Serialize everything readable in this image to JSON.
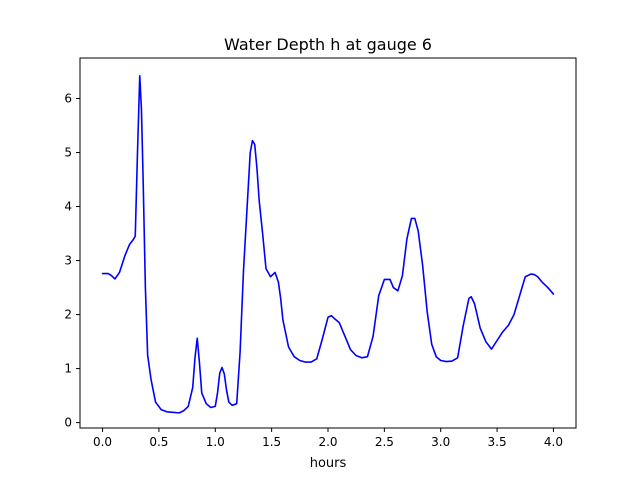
{
  "chart_data": {
    "type": "line",
    "title": "Water Depth h at gauge 6",
    "xlabel": "hours",
    "ylabel": "",
    "xlim": [
      -0.2,
      4.2
    ],
    "ylim": [
      -0.1,
      6.75
    ],
    "xticks": [
      0.0,
      0.5,
      1.0,
      1.5,
      2.0,
      2.5,
      3.0,
      3.5,
      4.0
    ],
    "xtick_labels": [
      "0.0",
      "0.5",
      "1.0",
      "1.5",
      "2.0",
      "2.5",
      "3.0",
      "3.5",
      "4.0"
    ],
    "yticks": [
      0,
      1,
      2,
      3,
      4,
      5,
      6
    ],
    "ytick_labels": [
      "0",
      "1",
      "2",
      "3",
      "4",
      "5",
      "6"
    ],
    "grid": false,
    "series": [
      {
        "color": "#0000ff",
        "x": [
          0.0,
          0.05,
          0.08,
          0.11,
          0.15,
          0.2,
          0.24,
          0.27,
          0.29,
          0.31,
          0.33,
          0.345,
          0.36,
          0.38,
          0.4,
          0.43,
          0.47,
          0.52,
          0.57,
          0.62,
          0.68,
          0.72,
          0.76,
          0.8,
          0.82,
          0.84,
          0.86,
          0.88,
          0.92,
          0.96,
          1.0,
          1.02,
          1.04,
          1.06,
          1.08,
          1.1,
          1.12,
          1.15,
          1.19,
          1.22,
          1.25,
          1.28,
          1.31,
          1.33,
          1.35,
          1.37,
          1.39,
          1.42,
          1.45,
          1.49,
          1.53,
          1.56,
          1.58,
          1.6,
          1.65,
          1.7,
          1.75,
          1.8,
          1.85,
          1.9,
          1.95,
          2.0,
          2.03,
          2.06,
          2.1,
          2.15,
          2.2,
          2.25,
          2.3,
          2.35,
          2.4,
          2.45,
          2.5,
          2.55,
          2.58,
          2.62,
          2.66,
          2.7,
          2.74,
          2.77,
          2.8,
          2.84,
          2.88,
          2.92,
          2.96,
          3.0,
          3.05,
          3.1,
          3.15,
          3.2,
          3.25,
          3.27,
          3.3,
          3.35,
          3.4,
          3.45,
          3.5,
          3.55,
          3.6,
          3.65,
          3.7,
          3.75,
          3.8,
          3.83,
          3.86,
          3.9,
          3.95,
          4.0
        ],
        "y": [
          2.76,
          2.76,
          2.72,
          2.66,
          2.78,
          3.1,
          3.3,
          3.38,
          3.45,
          5.0,
          6.42,
          5.8,
          4.5,
          2.5,
          1.25,
          0.8,
          0.38,
          0.24,
          0.2,
          0.19,
          0.18,
          0.22,
          0.3,
          0.65,
          1.2,
          1.56,
          1.1,
          0.55,
          0.35,
          0.28,
          0.3,
          0.55,
          0.92,
          1.02,
          0.9,
          0.6,
          0.38,
          0.32,
          0.35,
          1.3,
          2.8,
          3.9,
          5.0,
          5.22,
          5.15,
          4.7,
          4.1,
          3.5,
          2.85,
          2.7,
          2.78,
          2.6,
          2.3,
          1.9,
          1.4,
          1.22,
          1.15,
          1.12,
          1.12,
          1.18,
          1.55,
          1.95,
          1.98,
          1.92,
          1.85,
          1.6,
          1.35,
          1.24,
          1.2,
          1.22,
          1.6,
          2.35,
          2.65,
          2.65,
          2.5,
          2.44,
          2.72,
          3.4,
          3.78,
          3.78,
          3.55,
          2.9,
          2.05,
          1.45,
          1.22,
          1.15,
          1.13,
          1.14,
          1.2,
          1.8,
          2.3,
          2.33,
          2.2,
          1.75,
          1.5,
          1.36,
          1.52,
          1.68,
          1.8,
          2.0,
          2.35,
          2.7,
          2.75,
          2.74,
          2.7,
          2.6,
          2.5,
          2.38
        ]
      }
    ]
  }
}
